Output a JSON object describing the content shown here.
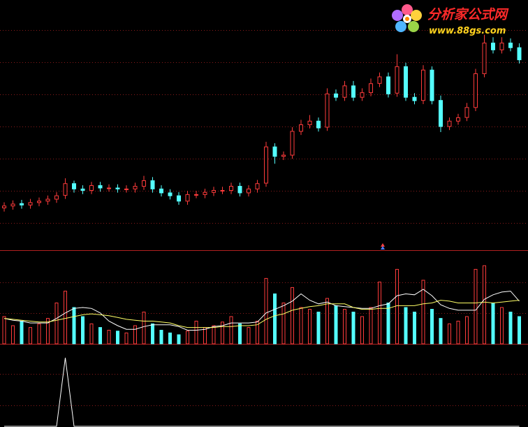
{
  "chart_data": [
    {
      "type": "candlestick",
      "up_color": "#ff3b3b",
      "down_color": "#54ffff",
      "ylim": [
        0,
        100
      ],
      "open": [
        16.8,
        17.6,
        18.6,
        18,
        19,
        19.6,
        20.4,
        22,
        26.8,
        24.6,
        24,
        26,
        25,
        25,
        24.6,
        24.6,
        25.7,
        28,
        24.6,
        23,
        21.8,
        19.6,
        22.3,
        22.3,
        23.2,
        24,
        24,
        25.7,
        23,
        24.6,
        27,
        41.9,
        38,
        38.5,
        48.3,
        51,
        52.5,
        50,
        63.7,
        62.3,
        67,
        62.3,
        64.2,
        68,
        70.7,
        64,
        74.9,
        62.3,
        61,
        73.5,
        61,
        50.3,
        52.5,
        54,
        58.1,
        72,
        84.6,
        81.8,
        84.6,
        82.7
      ],
      "high": [
        19.1,
        19.9,
        20.1,
        20.5,
        21.1,
        21.9,
        23.3,
        29,
        28,
        26.1,
        27.5,
        27.5,
        26.5,
        26.5,
        26.1,
        27.2,
        30,
        29.5,
        26.1,
        24.5,
        23.3,
        23.8,
        23.8,
        24.7,
        25.5,
        25.5,
        27.2,
        27.2,
        26.1,
        28.3,
        44,
        43.4,
        40,
        50,
        53,
        55,
        54,
        66,
        65.5,
        69,
        69,
        66,
        70,
        72.5,
        72.5,
        80,
        76.5,
        64,
        75.5,
        75,
        63,
        54,
        55.5,
        60,
        74,
        88,
        87,
        87,
        86.5,
        84.5
      ],
      "low": [
        15.3,
        16.1,
        16.5,
        16.5,
        17.5,
        18.1,
        18.9,
        20.5,
        23.1,
        22.5,
        22.5,
        23.5,
        23.5,
        23.1,
        23.1,
        23.1,
        24.2,
        23.1,
        21.5,
        20.3,
        18.1,
        18.1,
        20.8,
        20.8,
        21.7,
        22.5,
        22.5,
        21.5,
        21.5,
        23.1,
        25.5,
        35,
        36.5,
        37,
        46.8,
        49.5,
        48.2,
        48.5,
        60.8,
        60.8,
        60.8,
        60.8,
        62.7,
        66.5,
        62.2,
        62.5,
        60.8,
        59.4,
        59.5,
        59.4,
        48,
        48.8,
        51,
        52.5,
        56.6,
        70.5,
        80.3,
        80.3,
        81.2,
        76.2
      ],
      "close": [
        17.6,
        18.4,
        18,
        19,
        19.6,
        20.4,
        21.8,
        26.8,
        24.6,
        24,
        26,
        25,
        25,
        24.6,
        24.6,
        25.7,
        28,
        24.6,
        23,
        21.8,
        19.6,
        22.3,
        22.3,
        23.2,
        24,
        24,
        25.7,
        23,
        24.6,
        26.8,
        41.9,
        38,
        38.5,
        48.3,
        51,
        52.5,
        49.7,
        63.7,
        62.3,
        67,
        62.3,
        64.2,
        67.9,
        70.7,
        63.7,
        74.9,
        62.3,
        60.9,
        73.5,
        60.9,
        50.3,
        52.5,
        53.9,
        58.1,
        72,
        84.6,
        81.8,
        84.6,
        82.7,
        77.7
      ]
    },
    {
      "type": "bar",
      "ylim": [
        0,
        100
      ],
      "values": [
        30,
        20,
        25,
        18,
        22,
        28,
        45,
        58,
        40,
        30,
        22,
        18,
        15,
        14,
        12,
        20,
        35,
        22,
        15,
        12,
        10,
        14,
        25,
        18,
        20,
        24,
        30,
        22,
        18,
        25,
        72,
        55,
        45,
        62,
        40,
        38,
        35,
        50,
        42,
        38,
        35,
        30,
        40,
        68,
        45,
        82,
        40,
        35,
        70,
        38,
        28,
        22,
        25,
        30,
        82,
        86,
        45,
        40,
        35,
        30
      ],
      "series": [
        {
          "color": "#ffffff",
          "values": [
            28,
            26,
            25,
            23,
            23,
            23,
            28,
            34,
            39,
            40,
            39,
            34,
            25,
            20,
            16,
            16,
            19,
            21,
            21,
            21,
            19,
            15,
            15,
            16,
            19,
            20,
            23,
            23,
            23,
            24,
            34,
            38,
            42,
            47,
            55,
            48,
            44,
            46,
            42,
            41,
            40,
            39,
            39,
            42,
            44,
            53,
            55,
            54,
            60,
            53,
            43,
            39,
            37,
            37,
            37,
            49,
            54,
            57,
            58,
            47
          ]
        },
        {
          "color": "#ffff66",
          "values": [
            28,
            27,
            26,
            25,
            24,
            24,
            26,
            28,
            30,
            32,
            33,
            32,
            31,
            29,
            27,
            26,
            25,
            25,
            24,
            23,
            20,
            18,
            18,
            18,
            18,
            19,
            19,
            20,
            20,
            21,
            27,
            31,
            33,
            37,
            39,
            41,
            42,
            44,
            44,
            44,
            40,
            38,
            38,
            39,
            39,
            42,
            42,
            42,
            44,
            45,
            48,
            47,
            45,
            45,
            45,
            46,
            45,
            46,
            47,
            48
          ]
        }
      ]
    },
    {
      "type": "line",
      "color": "#ffffff",
      "ylim": [
        0,
        100
      ],
      "values": [
        0,
        0,
        0,
        0,
        0,
        0,
        0,
        100,
        0,
        0,
        0,
        0,
        0,
        0,
        0,
        0,
        0,
        0,
        0,
        0,
        0,
        0,
        0,
        0,
        0,
        0,
        0,
        0,
        0,
        0,
        0,
        0,
        0,
        0,
        0,
        0,
        0,
        0,
        0,
        0,
        0,
        0,
        0,
        0,
        0,
        0,
        0,
        0,
        0,
        0,
        0,
        0,
        0,
        0,
        0,
        0,
        0,
        0,
        0,
        0
      ]
    }
  ],
  "watermark": {
    "title": "分析家公式网",
    "url": "www.88gs.com"
  }
}
